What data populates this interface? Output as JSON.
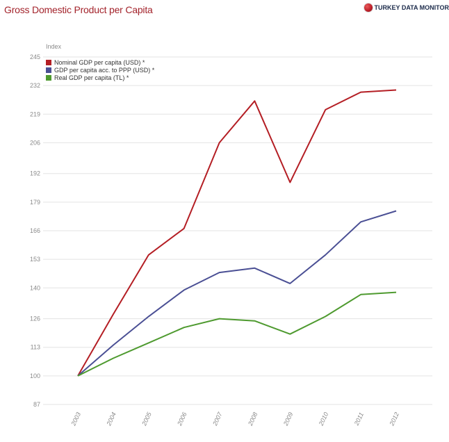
{
  "header": {
    "title": "Gross Domestic Product per Capita",
    "brand": "TURKEY DATA MONITOR",
    "brand_icon": "globe-icon"
  },
  "chart_data": {
    "type": "line",
    "ylabel": "Index",
    "ylim": [
      87,
      245
    ],
    "y_ticks": [
      87,
      100,
      113,
      126,
      140,
      153,
      166,
      179,
      192,
      206,
      219,
      232,
      245
    ],
    "grid": true,
    "legend_position": "top-left",
    "x": [
      "2003",
      "2004",
      "2005",
      "2006",
      "2007",
      "2008",
      "2009",
      "2010",
      "2011",
      "2012"
    ],
    "series": [
      {
        "name": "Nominal GDP per capita (USD) *",
        "color": "#b41e24",
        "values": [
          100,
          128,
          155,
          167,
          206,
          225,
          188,
          221,
          229,
          230
        ]
      },
      {
        "name": "GDP per capita acc. to PPP (USD) *",
        "color": "#4a4f94",
        "values": [
          100,
          114,
          127,
          139,
          147,
          149,
          142,
          155,
          170,
          175
        ]
      },
      {
        "name": "Real GDP per capita (TL) *",
        "color": "#4e9a2f",
        "values": [
          100,
          108,
          115,
          122,
          126,
          125,
          119,
          127,
          137,
          138
        ]
      }
    ]
  }
}
